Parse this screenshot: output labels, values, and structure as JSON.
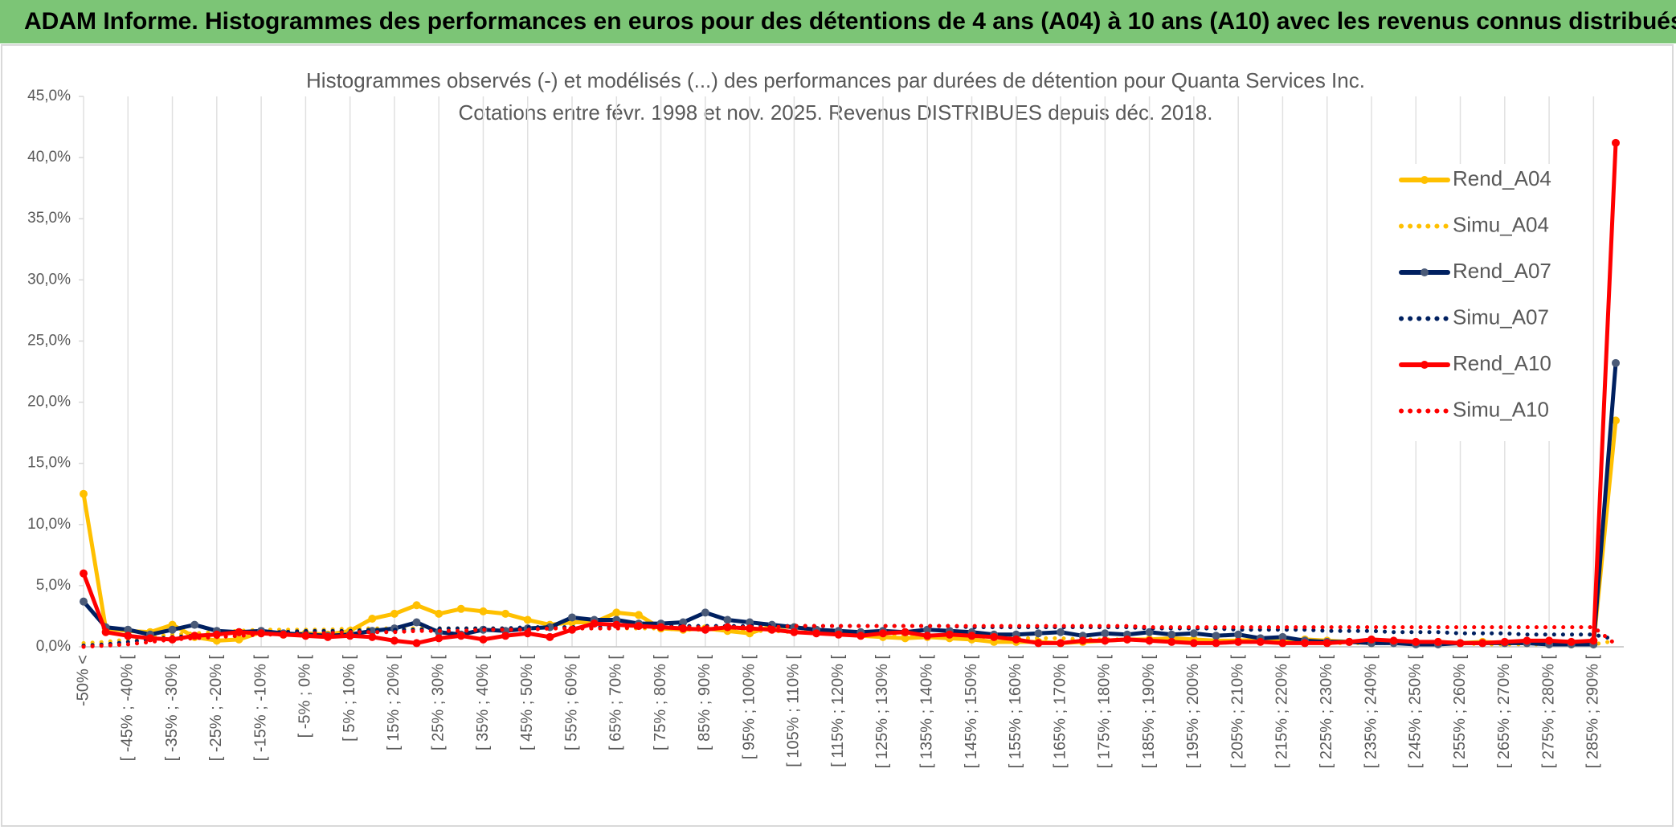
{
  "header": {
    "title": "ADAM Informe. Histogrammes des performances en euros pour des détentions de 4 ans (A04) à 10 ans (A10) avec les revenus connus distribués"
  },
  "chart_data": {
    "type": "line",
    "title": "Histogrammes observés (-) et modélisés (...) des performances par durées de détention pour Quanta Services Inc.",
    "subtitle": "Cotations entre févr. 1998 et nov. 2025. Revenus DISTRIBUES depuis déc. 2018.",
    "categories": [
      "-50% <",
      null,
      "[ -45% ; -40% [",
      null,
      "[ -35% ; -30% [",
      null,
      "[ -25% ; -20% [",
      null,
      "[ -15% ; -10% [",
      null,
      "[ -5% ; 0% [",
      null,
      "[ 5% ; 10% [",
      null,
      "[ 15% ; 20% [",
      null,
      "[ 25% ; 30% [",
      null,
      "[ 35% ; 40% [",
      null,
      "[ 45% ; 50% [",
      null,
      "[ 55% ; 60% [",
      null,
      "[ 65% ; 70% [",
      null,
      "[ 75% ; 80% [",
      null,
      "[ 85% ; 90% [",
      null,
      "[ 95% ; 100% [",
      null,
      "[ 105% ; 110% [",
      null,
      "[ 115% ; 120% [",
      null,
      "[ 125% ; 130% [",
      null,
      "[ 135% ; 140% [",
      null,
      "[ 145% ; 150% [",
      null,
      "[ 155% ; 160% [",
      null,
      "[ 165% ; 170% [",
      null,
      "[ 175% ; 180% [",
      null,
      "[ 185% ; 190% [",
      null,
      "[ 195% ; 200% [",
      null,
      "[ 205% ; 210% [",
      null,
      "[ 215% ; 220% [",
      null,
      "[ 225% ; 230% [",
      null,
      "[ 235% ; 240% [",
      null,
      "[ 245% ; 250% [",
      null,
      "[ 255% ; 260% [",
      null,
      "[ 265% ; 270% [",
      null,
      "[ 275% ; 280% [",
      null,
      "[ 285% ; 290% [",
      null
    ],
    "series": [
      {
        "name": "Rend_A04",
        "color": "#ffc000",
        "style": "solid",
        "markers": true,
        "values": [
          12.5,
          1.5,
          1.3,
          1.2,
          1.8,
          0.8,
          0.5,
          0.6,
          1.2,
          1.0,
          1.1,
          1.0,
          1.3,
          2.3,
          2.7,
          3.4,
          2.7,
          3.1,
          2.9,
          2.7,
          2.2,
          1.8,
          2.0,
          2.0,
          2.8,
          2.6,
          1.5,
          1.4,
          1.5,
          1.3,
          1.1,
          1.7,
          1.6,
          1.4,
          1.2,
          0.9,
          0.8,
          0.7,
          0.8,
          0.7,
          0.6,
          0.4,
          0.4,
          0.4,
          0.3,
          0.4,
          0.5,
          0.6,
          0.6,
          0.7,
          0.6,
          0.5,
          0.5,
          0.6,
          0.5,
          0.6,
          0.5,
          0.4,
          0.3,
          0.4,
          0.3,
          0.4,
          0.3,
          0.4,
          0.3,
          0.3,
          0.3,
          0.2,
          0.2,
          18.5
        ]
      },
      {
        "name": "Simu_A04",
        "color": "#ffc000",
        "style": "dotted",
        "markers": false,
        "values": [
          0.3,
          0.4,
          0.6,
          0.8,
          1.0,
          1.1,
          1.2,
          1.3,
          1.4,
          1.4,
          1.4,
          1.4,
          1.5,
          1.5,
          1.5,
          1.5,
          1.5,
          1.5,
          1.5,
          1.5,
          1.5,
          1.5,
          1.5,
          1.5,
          1.5,
          1.5,
          1.5,
          1.4,
          1.4,
          1.4,
          1.3,
          1.3,
          1.2,
          1.2,
          1.1,
          1.1,
          1.0,
          1.0,
          0.9,
          0.9,
          0.8,
          0.8,
          0.7,
          0.7,
          0.7,
          0.6,
          0.6,
          0.6,
          0.5,
          0.5,
          0.5,
          0.5,
          0.4,
          0.4,
          0.4,
          0.4,
          0.3,
          0.3,
          0.3,
          0.3,
          0.3,
          0.3,
          0.3,
          0.2,
          0.2,
          0.2,
          0.2,
          0.2,
          0.2,
          0.5
        ]
      },
      {
        "name": "Rend_A07",
        "color": "#002060",
        "style": "solid",
        "markers": true,
        "values": [
          3.7,
          1.6,
          1.4,
          1.0,
          1.4,
          1.8,
          1.3,
          1.2,
          1.3,
          1.1,
          1.0,
          0.9,
          1.0,
          1.3,
          1.5,
          2.0,
          1.2,
          1.0,
          1.4,
          1.3,
          1.5,
          1.6,
          2.4,
          2.2,
          2.2,
          1.9,
          1.9,
          2.0,
          2.8,
          2.2,
          2.0,
          1.8,
          1.6,
          1.4,
          1.3,
          1.2,
          1.3,
          1.2,
          1.4,
          1.3,
          1.2,
          1.0,
          1.0,
          1.1,
          1.2,
          0.9,
          1.1,
          1.0,
          1.2,
          1.0,
          1.1,
          0.9,
          1.0,
          0.7,
          0.8,
          0.5,
          0.4,
          0.4,
          0.3,
          0.3,
          0.2,
          0.2,
          0.3,
          0.3,
          0.3,
          0.3,
          0.2,
          0.2,
          0.2,
          23.2
        ]
      },
      {
        "name": "Simu_A07",
        "color": "#002060",
        "style": "dotted",
        "markers": false,
        "values": [
          0.1,
          0.2,
          0.4,
          0.6,
          0.8,
          0.9,
          1.0,
          1.1,
          1.2,
          1.2,
          1.3,
          1.3,
          1.3,
          1.4,
          1.4,
          1.4,
          1.5,
          1.5,
          1.5,
          1.5,
          1.6,
          1.6,
          1.6,
          1.6,
          1.6,
          1.7,
          1.7,
          1.7,
          1.7,
          1.7,
          1.7,
          1.7,
          1.7,
          1.7,
          1.7,
          1.7,
          1.7,
          1.7,
          1.7,
          1.7,
          1.6,
          1.6,
          1.6,
          1.6,
          1.6,
          1.6,
          1.6,
          1.6,
          1.5,
          1.5,
          1.5,
          1.5,
          1.4,
          1.4,
          1.4,
          1.4,
          1.3,
          1.3,
          1.3,
          1.2,
          1.2,
          1.2,
          1.1,
          1.1,
          1.1,
          1.0,
          1.0,
          1.0,
          1.0,
          0.6
        ]
      },
      {
        "name": "Rend_A10",
        "color": "#ff0000",
        "style": "solid",
        "markers": true,
        "values": [
          6.0,
          1.2,
          0.9,
          0.7,
          0.6,
          0.9,
          1.0,
          1.2,
          1.1,
          1.0,
          0.9,
          0.8,
          0.9,
          0.8,
          0.5,
          0.3,
          0.7,
          0.9,
          0.6,
          0.9,
          1.1,
          0.8,
          1.4,
          1.9,
          1.8,
          1.7,
          1.6,
          1.5,
          1.4,
          1.6,
          1.5,
          1.4,
          1.2,
          1.1,
          1.0,
          0.9,
          1.1,
          1.2,
          0.9,
          1.0,
          0.9,
          0.8,
          0.6,
          0.3,
          0.3,
          0.5,
          0.5,
          0.6,
          0.5,
          0.4,
          0.3,
          0.3,
          0.4,
          0.4,
          0.3,
          0.3,
          0.3,
          0.4,
          0.6,
          0.5,
          0.4,
          0.4,
          0.3,
          0.3,
          0.4,
          0.5,
          0.5,
          0.4,
          0.5,
          41.2
        ]
      },
      {
        "name": "Simu_A10",
        "color": "#ff0000",
        "style": "dotted",
        "markers": false,
        "values": [
          0.0,
          0.1,
          0.2,
          0.4,
          0.6,
          0.7,
          0.8,
          0.9,
          1.0,
          1.0,
          1.1,
          1.1,
          1.2,
          1.2,
          1.2,
          1.3,
          1.3,
          1.3,
          1.4,
          1.4,
          1.4,
          1.5,
          1.5,
          1.5,
          1.5,
          1.6,
          1.6,
          1.6,
          1.6,
          1.6,
          1.6,
          1.6,
          1.7,
          1.7,
          1.7,
          1.7,
          1.7,
          1.7,
          1.7,
          1.7,
          1.7,
          1.7,
          1.7,
          1.7,
          1.7,
          1.7,
          1.7,
          1.7,
          1.6,
          1.6,
          1.6,
          1.6,
          1.6,
          1.6,
          1.6,
          1.6,
          1.6,
          1.6,
          1.6,
          1.6,
          1.6,
          1.6,
          1.6,
          1.6,
          1.6,
          1.6,
          1.6,
          1.6,
          1.6,
          0.2
        ]
      }
    ],
    "ylim": [
      0,
      45
    ],
    "yticks": [
      {
        "value": 0,
        "label": "0,0%"
      },
      {
        "value": 5,
        "label": "5,0%"
      },
      {
        "value": 10,
        "label": "10,0%"
      },
      {
        "value": 15,
        "label": "15,0%"
      },
      {
        "value": 20,
        "label": "20,0%"
      },
      {
        "value": 25,
        "label": "25,0%"
      },
      {
        "value": 30,
        "label": "30,0%"
      },
      {
        "value": 35,
        "label": "35,0%"
      },
      {
        "value": 40,
        "label": "40,0%"
      },
      {
        "value": 45,
        "label": "45,0%"
      }
    ],
    "grid": true,
    "legend": "right"
  }
}
